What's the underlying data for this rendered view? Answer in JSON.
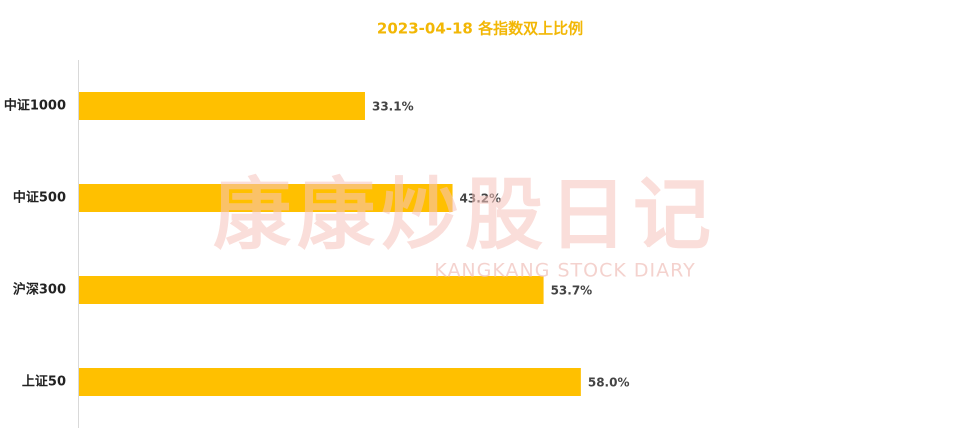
{
  "chart_data": {
    "type": "bar",
    "orientation": "horizontal",
    "title": "2023-04-18 各指数双上比例",
    "categories": [
      "中证1000",
      "中证500",
      "沪深300",
      "上证50"
    ],
    "values": [
      33.1,
      43.2,
      53.7,
      58.0
    ],
    "value_labels": [
      "33.1%",
      "43.2%",
      "53.7%",
      "58.0%"
    ],
    "color": "#ffc000",
    "watermark": {
      "title": "康康炒股日记",
      "subtitle": "KANGKANG STOCK DIARY"
    }
  }
}
